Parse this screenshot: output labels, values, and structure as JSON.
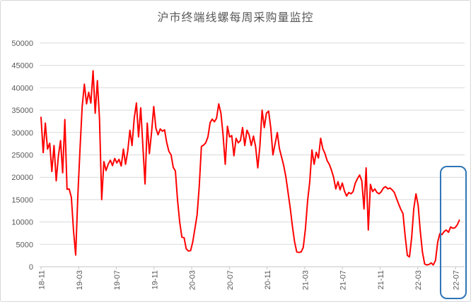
{
  "chart": {
    "title": "沪市终端线螺每周采购量监控"
  },
  "chart_data": {
    "type": "line",
    "title": "沪市终端线螺每周采购量监控",
    "x_unit": "week (YY-MM ticks every 4 months)",
    "x_tick_labels": [
      "18-11",
      "19-03",
      "19-07",
      "19-11",
      "20-03",
      "20-07",
      "20-11",
      "21-03",
      "21-07",
      "21-11",
      "22-03",
      "22-07"
    ],
    "y_ticks": [
      0,
      5000,
      10000,
      15000,
      20000,
      25000,
      30000,
      35000,
      40000,
      45000,
      50000
    ],
    "ylim": [
      0,
      50000
    ],
    "grid": true,
    "legend": "none",
    "series_name": "周采购量",
    "series_color": "#ff0000",
    "axis_label_color": "#595959",
    "gridline_color": "#d9d9d9",
    "axis_line_color": "#c6c6c6",
    "values": [
      33400,
      25500,
      32100,
      26300,
      27600,
      21300,
      27100,
      19200,
      24700,
      28200,
      21000,
      32900,
      17300,
      17400,
      15500,
      8000,
      2600,
      16000,
      26500,
      35800,
      40800,
      36400,
      39000,
      36600,
      43800,
      34300,
      41600,
      33000,
      15000,
      23500,
      21500,
      22900,
      23800,
      22600,
      24200,
      23200,
      24000,
      22500,
      26300,
      22900,
      25800,
      30500,
      27100,
      33200,
      36600,
      29000,
      35500,
      27000,
      18500,
      32100,
      25300,
      30000,
      35800,
      31000,
      29500,
      30800,
      30300,
      30600,
      27700,
      25800,
      25000,
      22200,
      21400,
      14800,
      10000,
      6600,
      6500,
      4000,
      3500,
      3600,
      5500,
      8500,
      11600,
      17900,
      26900,
      27200,
      27700,
      29000,
      32200,
      33000,
      32400,
      33200,
      36400,
      34300,
      29500,
      22900,
      31400,
      29000,
      29300,
      24800,
      28700,
      27700,
      28200,
      31100,
      27100,
      30500,
      29500,
      27100,
      29200,
      26900,
      22100,
      27000,
      35000,
      31100,
      34300,
      34800,
      31000,
      25000,
      27500,
      30000,
      26400,
      24500,
      22500,
      20000,
      16500,
      13000,
      9000,
      5500,
      3300,
      3200,
      3300,
      4300,
      8500,
      14800,
      19000,
      26100,
      22900,
      25600,
      24300,
      28700,
      26400,
      25300,
      23700,
      22900,
      21600,
      20000,
      17400,
      19000,
      17200,
      18700,
      16900,
      15800,
      16600,
      16300,
      16800,
      18700,
      19700,
      20500,
      19200,
      12900,
      22100,
      8200,
      18400,
      16800,
      17400,
      16600,
      16300,
      16800,
      17600,
      17900,
      17400,
      17600,
      17200,
      16600,
      15300,
      14000,
      12800,
      11900,
      6900,
      2500,
      2200,
      6500,
      13000,
      16300,
      13700,
      7900,
      3200,
      600,
      400,
      500,
      850,
      400,
      1400,
      5500,
      7400,
      7200,
      7900,
      8200,
      7700,
      8900,
      8600,
      8700,
      9300,
      10400
    ],
    "highlight": {
      "shape": "rounded-box",
      "around_tick_label": "22-07",
      "meaning": "highlights the most recent weeks",
      "color": "#2e74b5"
    }
  }
}
